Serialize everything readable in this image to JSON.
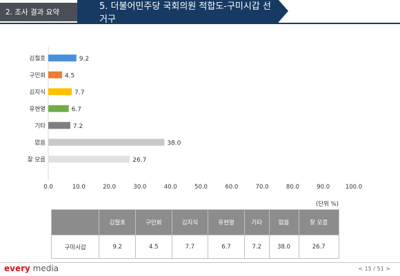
{
  "header": {
    "section": "2. 조사 결과 요약",
    "title": "5. 더불어민주당 국회의원 적합도-구미시갑 선거구"
  },
  "chart_data": {
    "type": "bar",
    "orientation": "horizontal",
    "categories": [
      "김철호",
      "구민회",
      "김지식",
      "유현열",
      "기타",
      "없음",
      "잘 모름"
    ],
    "values": [
      9.2,
      4.5,
      7.7,
      6.7,
      7.2,
      38.0,
      26.7
    ],
    "value_labels": [
      "9.2",
      "4.5",
      "7.7",
      "6.7",
      "7.2",
      "38.0",
      "26.7"
    ],
    "colors": [
      "#4a90d9",
      "#ed7d31",
      "#ffc000",
      "#70ad47",
      "#7f7f7f",
      "#c9c9c9",
      "#e2e2e2"
    ],
    "xlim": [
      0,
      100
    ],
    "xticks": [
      "0.0",
      "10.0",
      "20.0",
      "30.0",
      "40.0",
      "50.0",
      "60.0",
      "70.0",
      "80.0",
      "90.0",
      "100.0"
    ],
    "grid": false,
    "unit": "(단위 %)"
  },
  "table": {
    "columns": [
      "김철호",
      "구민회",
      "김지식",
      "유현열",
      "기타",
      "없음",
      "잘 모름"
    ],
    "row_label": "구미시갑",
    "values": [
      "9.2",
      "4.5",
      "7.7",
      "6.7",
      "7.2",
      "38.0",
      "26.7"
    ]
  },
  "footer": {
    "logo_main": "every",
    "logo_sub": " media",
    "page": "< 15 / 51 >"
  }
}
